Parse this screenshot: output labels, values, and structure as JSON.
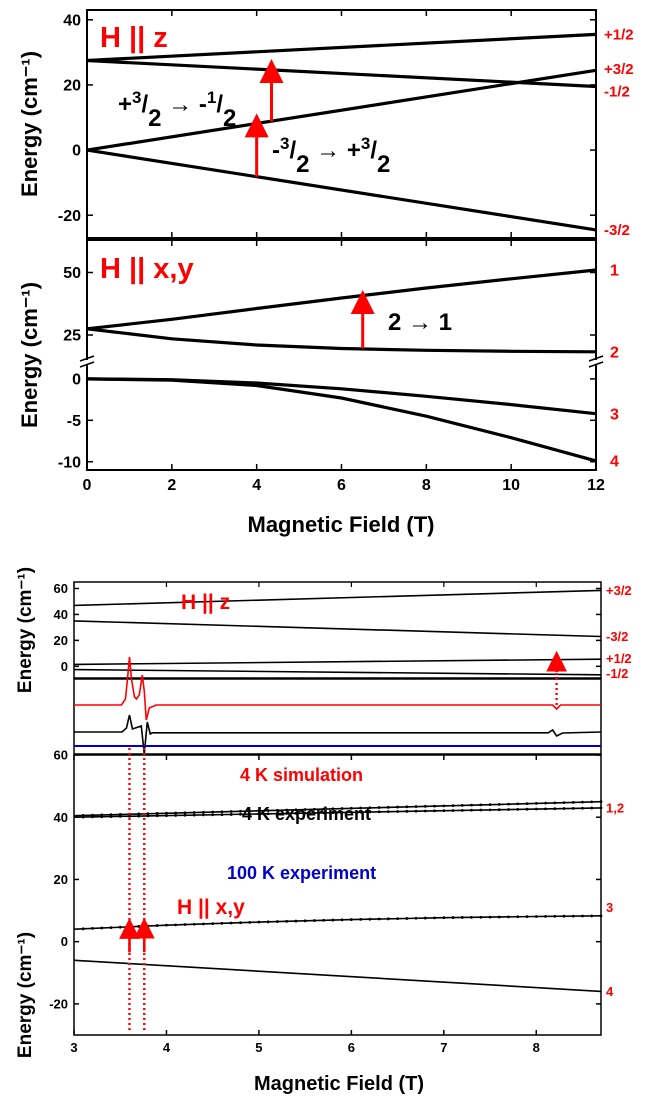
{
  "colors": {
    "ink": "#000000",
    "accent": "#ff0000",
    "blue": "#0000cc"
  },
  "chart_data": [
    {
      "type": "line",
      "title": "H || z",
      "ylabel": "Energy (cm⁻¹)",
      "xlim": [
        0,
        12
      ],
      "ylim": [
        -27,
        43
      ],
      "yticks": [
        -20,
        0,
        20,
        40
      ],
      "series": [
        {
          "x": [
            0,
            12
          ],
          "y": [
            27.5,
            35.5
          ]
        },
        {
          "x": [
            0,
            12
          ],
          "y": [
            27.5,
            19.5
          ]
        },
        {
          "x": [
            0,
            12
          ],
          "y": [
            0,
            24.5
          ]
        },
        {
          "x": [
            0,
            12
          ],
          "y": [
            0,
            -24.5
          ]
        }
      ],
      "level_labels": [
        {
          "label": "+1/2",
          "y": 35.5
        },
        {
          "label": "+3/2",
          "y": 25
        },
        {
          "label": "-1/2",
          "y": 18
        },
        {
          "label": "-3/2",
          "y": -24.5
        }
      ],
      "transitions": [
        {
          "label": "+3/2 → -1/2",
          "x": 4.35,
          "y0": 8.8,
          "y1": 25.5
        },
        {
          "label": "-3/2 → +3/2",
          "x": 4.0,
          "y0": -8.2,
          "y1": 8.8
        }
      ]
    },
    {
      "type": "line",
      "title": "H || x,y",
      "ylabel": "Energy (cm⁻¹)",
      "xlabel": "Magnetic Field (T)",
      "xlim": [
        0,
        12
      ],
      "xticks": [
        0,
        2,
        4,
        6,
        8,
        10,
        12
      ],
      "upper_ylim": [
        15,
        63
      ],
      "upper_yticks": [
        25,
        50
      ],
      "lower_ylim": [
        -11,
        1.8
      ],
      "lower_yticks": [
        -10,
        -5,
        0
      ],
      "axis_break": true,
      "series": [
        {
          "x": [
            0,
            2,
            4,
            6,
            8,
            10,
            12
          ],
          "y": [
            27.5,
            31.3,
            35.6,
            39.8,
            43.8,
            47.5,
            51
          ]
        },
        {
          "x": [
            0,
            2,
            4,
            6,
            8,
            10,
            12
          ],
          "y": [
            27.5,
            23.5,
            21.0,
            19.6,
            18.9,
            18.5,
            18.3
          ]
        },
        {
          "x": [
            0,
            2,
            4,
            6,
            8,
            10,
            12
          ],
          "y": [
            0,
            -0.1,
            -0.5,
            -1.2,
            -2.1,
            -3.1,
            -4.2
          ]
        },
        {
          "x": [
            0,
            2,
            4,
            6,
            8,
            10,
            12
          ],
          "y": [
            0,
            -0.15,
            -0.8,
            -2.3,
            -4.5,
            -7.1,
            -9.9
          ]
        }
      ],
      "level_labels": [
        {
          "label": "1",
          "y": 51
        },
        {
          "label": "2",
          "y": 18.3
        },
        {
          "label": "3",
          "y": -4.2
        },
        {
          "label": "4",
          "y": -9.9
        }
      ],
      "transitions": [
        {
          "label": "2 → 1",
          "x": 6.5,
          "y0": 19.6,
          "y1": 39.8
        }
      ]
    },
    {
      "type": "line",
      "title": "H || z",
      "ylabel": "Energy (cm⁻¹)",
      "xlim": [
        3,
        8.7
      ],
      "ylim": [
        -9,
        65
      ],
      "yticks": [
        0,
        20,
        40,
        60
      ],
      "series": [
        {
          "x": [
            3,
            8.7
          ],
          "y": [
            47,
            58.5
          ]
        },
        {
          "x": [
            3,
            8.7
          ],
          "y": [
            35,
            23
          ]
        },
        {
          "x": [
            3,
            8.7
          ],
          "y": [
            1.5,
            5.5
          ]
        },
        {
          "x": [
            3,
            8.7
          ],
          "y": [
            -2.5,
            -6.5
          ]
        }
      ],
      "level_labels": [
        {
          "label": "+3/2",
          "y": 58.5
        },
        {
          "label": "-3/2",
          "y": 23
        },
        {
          "label": "+1/2",
          "y": 6
        },
        {
          "label": "-1/2",
          "y": -5.5
        }
      ],
      "transition_arrow": {
        "x": 8.22,
        "y0": -6.5,
        "y1": 5.5
      }
    },
    {
      "type": "line",
      "spectra": [
        {
          "name": "4 K simulation",
          "color": "#ff0000"
        },
        {
          "name": "4 K experiment",
          "color": "#000000"
        },
        {
          "name": "100 K experiment",
          "color": "#0000cc"
        }
      ],
      "resonance_fields": [
        3.6,
        3.76,
        8.22
      ]
    },
    {
      "type": "line",
      "title": "H || x,y",
      "ylabel": "Energy (cm⁻¹)",
      "xlabel": "Magnetic Field (T)",
      "xlim": [
        3,
        8.7
      ],
      "xticks": [
        3,
        4,
        5,
        6,
        7,
        8
      ],
      "ylim": [
        -30,
        60
      ],
      "yticks": [
        -20,
        0,
        20,
        40,
        60
      ],
      "series": [
        {
          "x": [
            3,
            8.7
          ],
          "y": [
            40.5,
            45
          ]
        },
        {
          "x": [
            3,
            8.7
          ],
          "y": [
            40,
            43
          ]
        },
        {
          "x": [
            3,
            4,
            5,
            6,
            7,
            8,
            8.7
          ],
          "y": [
            4,
            5.3,
            6.3,
            7.1,
            7.7,
            8.1,
            8.3
          ]
        },
        {
          "x": [
            3,
            8.7
          ],
          "y": [
            -6,
            -16
          ]
        }
      ],
      "level_labels": [
        {
          "label": "1,2",
          "y": 43
        },
        {
          "label": "3",
          "y": 11
        },
        {
          "label": "4",
          "y": -16
        }
      ],
      "transition_arrows": [
        {
          "x": 3.6,
          "y0": 4.9,
          "y1": 40.3
        },
        {
          "x": 3.76,
          "y0": 5.0,
          "y1": 40.4
        }
      ]
    }
  ]
}
